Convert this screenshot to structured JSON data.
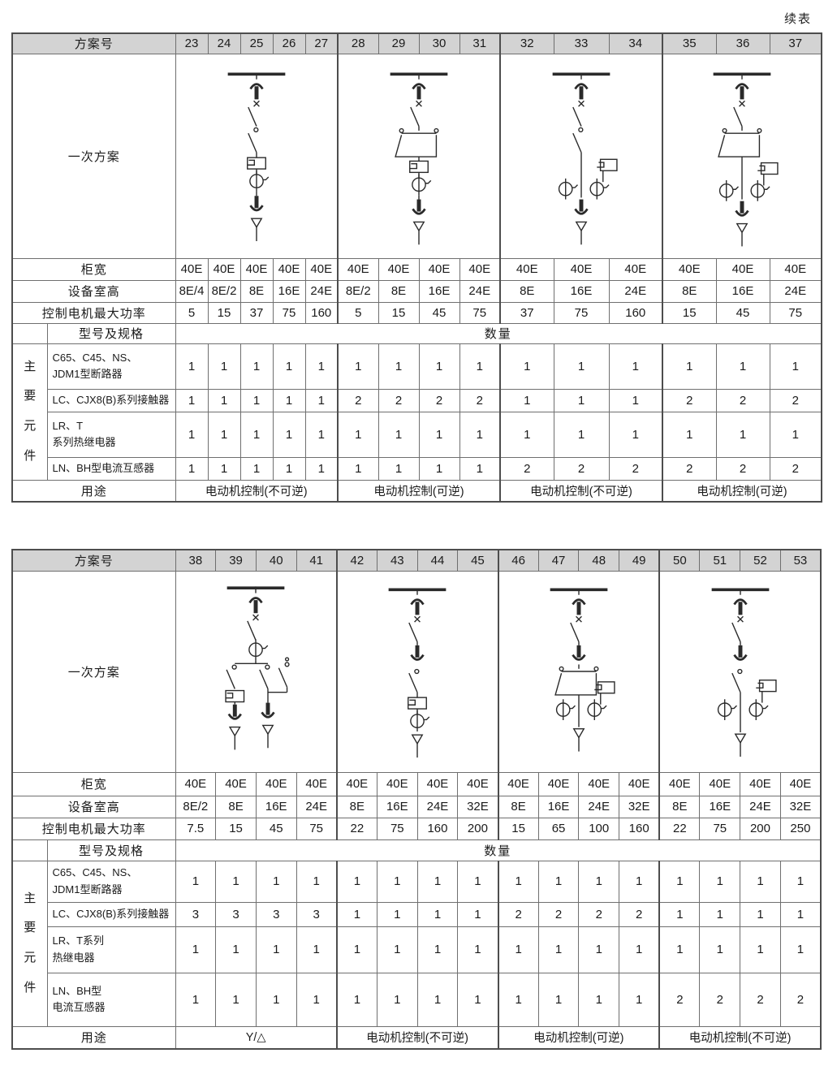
{
  "page": {
    "continued_label": "续表"
  },
  "labels": {
    "scheme_no": "方案号",
    "primary_scheme": "一次方案",
    "cabinet_width": "柜宽",
    "room_height": "设备室高",
    "max_motor_power": "控制电机最大功率",
    "model_spec": "型号及规格",
    "quantity": "数量",
    "main_components": "主要元件",
    "usage": "用途"
  },
  "tables": [
    {
      "schemes": [
        "23",
        "24",
        "25",
        "26",
        "27",
        "28",
        "29",
        "30",
        "31",
        "32",
        "33",
        "34",
        "35",
        "36",
        "37"
      ],
      "groups": [
        {
          "span": 5,
          "diagram": "nonrev-1ct",
          "usage": "电动机控制(不可逆)"
        },
        {
          "span": 4,
          "diagram": "rev-1ct",
          "usage": "电动机控制(可逆)"
        },
        {
          "span": 3,
          "diagram": "nonrev-2ct",
          "usage": "电动机控制(不可逆)"
        },
        {
          "span": 3,
          "diagram": "rev-2ct",
          "usage": "电动机控制(可逆)"
        }
      ],
      "cabinet_width": [
        "40E",
        "40E",
        "40E",
        "40E",
        "40E",
        "40E",
        "40E",
        "40E",
        "40E",
        "40E",
        "40E",
        "40E",
        "40E",
        "40E",
        "40E"
      ],
      "room_height": [
        "8E/4",
        "8E/2",
        "8E",
        "16E",
        "24E",
        "8E/2",
        "8E",
        "16E",
        "24E",
        "8E",
        "16E",
        "24E",
        "8E",
        "16E",
        "24E"
      ],
      "max_power": [
        "5",
        "15",
        "37",
        "75",
        "160",
        "5",
        "15",
        "45",
        "75",
        "37",
        "75",
        "160",
        "15",
        "45",
        "75"
      ],
      "components": [
        {
          "name": "C65、C45、NS、\nJDM1型断路器",
          "values": [
            "1",
            "1",
            "1",
            "1",
            "1",
            "1",
            "1",
            "1",
            "1",
            "1",
            "1",
            "1",
            "1",
            "1",
            "1"
          ]
        },
        {
          "name": "LC、CJX8(B)系列接触器",
          "values": [
            "1",
            "1",
            "1",
            "1",
            "1",
            "2",
            "2",
            "2",
            "2",
            "1",
            "1",
            "1",
            "2",
            "2",
            "2"
          ]
        },
        {
          "name": "LR、T\n系列热继电器",
          "values": [
            "1",
            "1",
            "1",
            "1",
            "1",
            "1",
            "1",
            "1",
            "1",
            "1",
            "1",
            "1",
            "1",
            "1",
            "1"
          ]
        },
        {
          "name": "LN、BH型电流互感器",
          "values": [
            "1",
            "1",
            "1",
            "1",
            "1",
            "1",
            "1",
            "1",
            "1",
            "2",
            "2",
            "2",
            "2",
            "2",
            "2"
          ]
        }
      ]
    },
    {
      "schemes": [
        "38",
        "39",
        "40",
        "41",
        "42",
        "43",
        "44",
        "45",
        "46",
        "47",
        "48",
        "49",
        "50",
        "51",
        "52",
        "53"
      ],
      "groups": [
        {
          "span": 4,
          "diagram": "star-delta",
          "usage": "Y/△"
        },
        {
          "span": 4,
          "diagram": "drawout-nonrev-1ct",
          "usage": "电动机控制(不可逆)"
        },
        {
          "span": 4,
          "diagram": "drawout-rev-2ct",
          "usage": "电动机控制(可逆)"
        },
        {
          "span": 4,
          "diagram": "drawout-nonrev-2ct",
          "usage": "电动机控制(不可逆)"
        }
      ],
      "cabinet_width": [
        "40E",
        "40E",
        "40E",
        "40E",
        "40E",
        "40E",
        "40E",
        "40E",
        "40E",
        "40E",
        "40E",
        "40E",
        "40E",
        "40E",
        "40E",
        "40E"
      ],
      "room_height": [
        "8E/2",
        "8E",
        "16E",
        "24E",
        "8E",
        "16E",
        "24E",
        "32E",
        "8E",
        "16E",
        "24E",
        "32E",
        "8E",
        "16E",
        "24E",
        "32E"
      ],
      "max_power": [
        "7.5",
        "15",
        "45",
        "75",
        "22",
        "75",
        "160",
        "200",
        "15",
        "65",
        "100",
        "160",
        "22",
        "75",
        "200",
        "250"
      ],
      "components": [
        {
          "name": "C65、C45、NS、\nJDM1型断路器",
          "values": [
            "1",
            "1",
            "1",
            "1",
            "1",
            "1",
            "1",
            "1",
            "1",
            "1",
            "1",
            "1",
            "1",
            "1",
            "1",
            "1"
          ]
        },
        {
          "name": "LC、CJX8(B)系列接触器",
          "values": [
            "3",
            "3",
            "3",
            "3",
            "1",
            "1",
            "1",
            "1",
            "2",
            "2",
            "2",
            "2",
            "1",
            "1",
            "1",
            "1"
          ]
        },
        {
          "name": "LR、T系列\n热继电器",
          "values": [
            "1",
            "1",
            "1",
            "1",
            "1",
            "1",
            "1",
            "1",
            "1",
            "1",
            "1",
            "1",
            "1",
            "1",
            "1",
            "1"
          ]
        },
        {
          "name": "LN、BH型\n电流互感器",
          "values": [
            "1",
            "1",
            "1",
            "1",
            "1",
            "1",
            "1",
            "1",
            "1",
            "1",
            "1",
            "1",
            "2",
            "2",
            "2",
            "2"
          ]
        }
      ]
    }
  ]
}
